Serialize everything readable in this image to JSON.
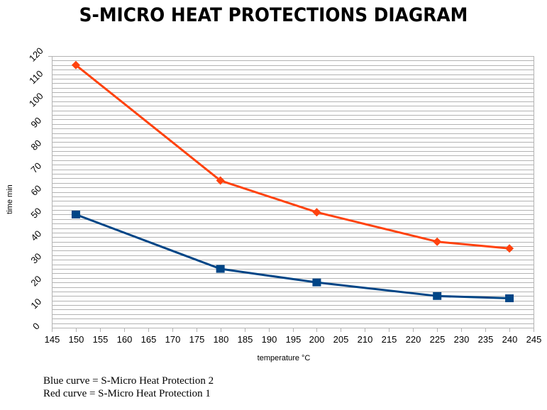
{
  "chart_data": {
    "type": "line",
    "title": "S-MICRO HEAT PROTECTIONS DIAGRAM",
    "xlabel": "temperature °C",
    "ylabel": "time min",
    "xlim": [
      145,
      245
    ],
    "ylim": [
      0,
      120
    ],
    "x_ticks": [
      145,
      150,
      155,
      160,
      165,
      170,
      175,
      180,
      185,
      190,
      195,
      200,
      205,
      210,
      215,
      220,
      225,
      230,
      235,
      240,
      245
    ],
    "y_ticks": [
      0,
      10,
      20,
      30,
      40,
      50,
      60,
      70,
      80,
      90,
      100,
      110,
      120
    ],
    "grid": true,
    "grid_minor_step_y": 2,
    "series": [
      {
        "name": "S-Micro Heat Protection 1",
        "color": "#ff420e",
        "marker": "diamond",
        "x": [
          150,
          180,
          200,
          225,
          240
        ],
        "values": [
          116,
          65,
          51,
          38,
          35
        ]
      },
      {
        "name": "S-Micro Heat Protection 2",
        "color": "#004586",
        "marker": "square",
        "x": [
          150,
          180,
          200,
          225,
          240
        ],
        "values": [
          50,
          26,
          20,
          14,
          13
        ]
      }
    ]
  },
  "notes": [
    "Blue curve = S-Micro Heat Protection 2",
    "Red curve = S-Micro Heat Protection 1"
  ]
}
